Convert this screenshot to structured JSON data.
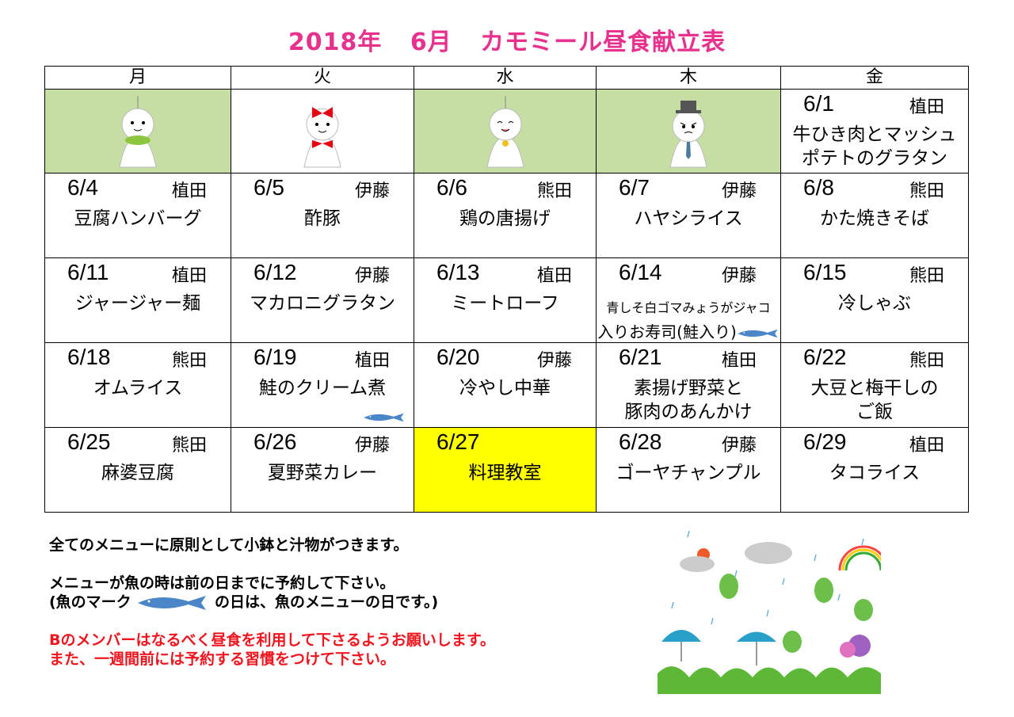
{
  "title": {
    "year": "2018年",
    "month": "6月",
    "name": "カモミール昼食献立表",
    "color": "#e8318d"
  },
  "weekdays": [
    "月",
    "火",
    "水",
    "木",
    "金"
  ],
  "first_week": {
    "decorations": [
      "teru-teru-bozu-green-scarf",
      "teru-teru-bozu-red-bow",
      "teru-teru-bozu-bell",
      "teru-teru-bozu-top-hat"
    ],
    "friday": {
      "date": "6/1",
      "cook": "植田",
      "menu": [
        "牛ひき肉とマッシュ",
        "ポテトのグラタン"
      ]
    }
  },
  "weeks": [
    [
      {
        "date": "6/4",
        "cook": "植田",
        "menu": [
          "豆腐ハンバーグ"
        ]
      },
      {
        "date": "6/5",
        "cook": "伊藤",
        "menu": [
          "酢豚"
        ]
      },
      {
        "date": "6/6",
        "cook": "熊田",
        "menu": [
          "鶏の唐揚げ"
        ]
      },
      {
        "date": "6/7",
        "cook": "伊藤",
        "menu": [
          "ハヤシライス"
        ]
      },
      {
        "date": "6/8",
        "cook": "熊田",
        "menu": [
          "かた焼きそば"
        ]
      }
    ],
    [
      {
        "date": "6/11",
        "cook": "植田",
        "menu": [
          "ジャージャー麺"
        ]
      },
      {
        "date": "6/12",
        "cook": "伊藤",
        "menu": [
          "マカロニグラタン"
        ]
      },
      {
        "date": "6/13",
        "cook": "植田",
        "menu": [
          "ミートローフ"
        ]
      },
      {
        "date": "6/14",
        "cook": "伊藤",
        "menu": [
          "青しそ白ゴマみょうがジャコ",
          "入りお寿司(鮭入り)"
        ],
        "fish": true,
        "small": true
      },
      {
        "date": "6/15",
        "cook": "熊田",
        "menu": [
          "冷しゃぶ"
        ]
      }
    ],
    [
      {
        "date": "6/18",
        "cook": "熊田",
        "menu": [
          "オムライス"
        ]
      },
      {
        "date": "6/19",
        "cook": "植田",
        "menu": [
          "鮭のクリーム煮"
        ],
        "fish": true
      },
      {
        "date": "6/20",
        "cook": "伊藤",
        "menu": [
          "冷やし中華"
        ]
      },
      {
        "date": "6/21",
        "cook": "植田",
        "menu": [
          "素揚げ野菜と",
          "豚肉のあんかけ"
        ]
      },
      {
        "date": "6/22",
        "cook": "熊田",
        "menu": [
          "大豆と梅干しの",
          "ご飯"
        ]
      }
    ],
    [
      {
        "date": "6/25",
        "cook": "熊田",
        "menu": [
          "麻婆豆腐"
        ]
      },
      {
        "date": "6/26",
        "cook": "伊藤",
        "menu": [
          "夏野菜カレー"
        ]
      },
      {
        "date": "6/27",
        "cook": "",
        "menu": [
          "料理教室"
        ],
        "highlight": "#ffff00"
      },
      {
        "date": "6/28",
        "cook": "伊藤",
        "menu": [
          "ゴーヤチャンプル"
        ]
      },
      {
        "date": "6/29",
        "cook": "植田",
        "menu": [
          "タコライス"
        ]
      }
    ]
  ],
  "notes": {
    "line1": "全てのメニューに原則として小鉢と汁物がつきます。",
    "line2": "メニューが魚の時は前の日までに予約して下さい。",
    "line3_before": "(魚のマーク",
    "line3_after": "の日は、魚のメニューの日です。)",
    "line4": "Bのメンバーはなるべく昼食を利用して下さるようお願いします。",
    "line5": "また、一週間前には予約する習慣をつけて下さい。",
    "red_color": "#f0141e"
  },
  "illustration": "rainy-season-frogs-umbrellas-hydrangea"
}
